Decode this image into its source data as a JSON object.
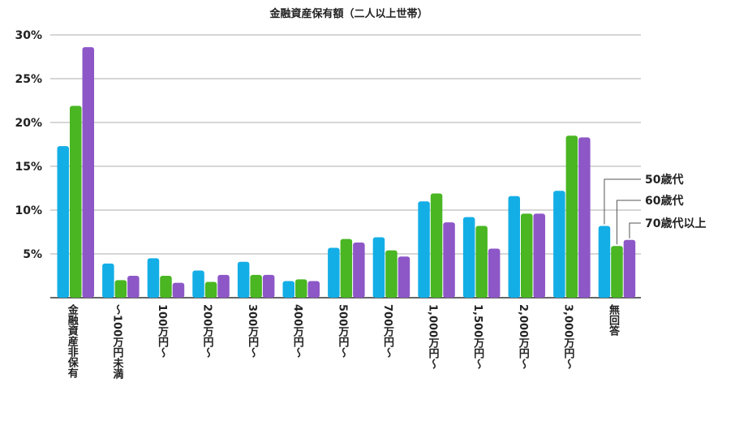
{
  "chart_data": {
    "type": "bar",
    "title": "金融資産保有額（二人以上世帯）",
    "categories": [
      "金融資産非保有",
      "～100万円未満",
      "100万円～",
      "200万円～",
      "300万円～",
      "400万円～",
      "500万円～",
      "700万円～",
      "1,000万円～",
      "1,500万円～",
      "2,000万円～",
      "3,000万円～",
      "無回答"
    ],
    "series": [
      {
        "name": "50歳代",
        "color": "#14aee6",
        "values": [
          17.3,
          3.9,
          4.5,
          3.1,
          4.1,
          1.9,
          5.7,
          6.9,
          11.0,
          9.2,
          11.6,
          12.2,
          8.2
        ]
      },
      {
        "name": "60歳代",
        "color": "#49b622",
        "values": [
          21.9,
          2.0,
          2.5,
          1.8,
          2.6,
          2.1,
          6.7,
          5.4,
          11.9,
          8.2,
          9.6,
          18.5,
          5.9
        ]
      },
      {
        "name": "70歳代以上",
        "color": "#8d57c7",
        "values": [
          28.6,
          2.5,
          1.7,
          2.6,
          2.6,
          1.9,
          6.3,
          4.7,
          8.6,
          5.6,
          9.6,
          18.3,
          6.6
        ]
      }
    ],
    "yticks": [
      "5%",
      "10%",
      "15%",
      "20%",
      "25%",
      "30%"
    ],
    "ylim": [
      0,
      30
    ],
    "grid": true,
    "legend": "right (labels attached to last category bars)"
  }
}
